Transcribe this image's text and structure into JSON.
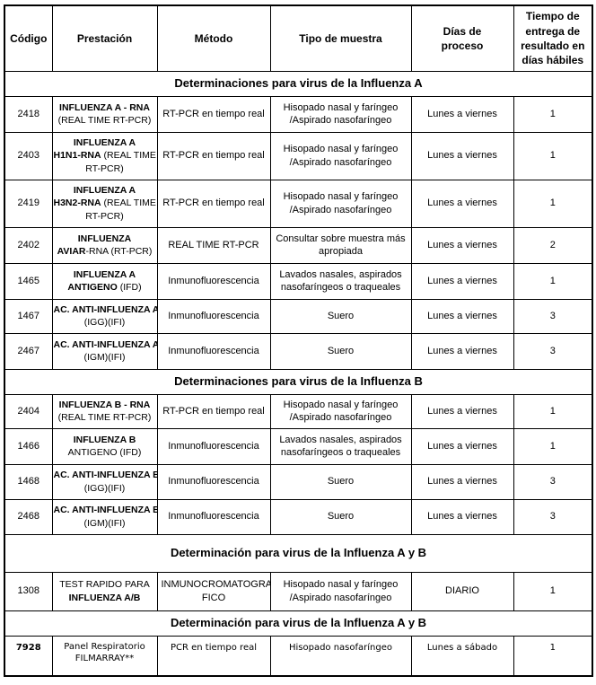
{
  "colors": {
    "text": "#000000",
    "border": "#000000",
    "background": "#ffffff"
  },
  "table": {
    "columns": [
      "Código",
      "Prestación",
      "Método",
      "Tipo de muestra",
      "Días de proceso",
      "Tiempo de entrega de resultado en días hábiles"
    ],
    "rows": [
      {
        "type": "section",
        "title": "Determinaciones para virus de la Influenza A"
      },
      {
        "type": "test",
        "codigo": "2418",
        "prestacion": [
          [
            [
              "INFLUENZA A - RNA",
              true
            ]
          ],
          [
            [
              "(REAL TIME RT-PCR)",
              false
            ]
          ]
        ],
        "metodo": "RT-PCR en tiempo real",
        "muestra": "Hisopado nasal y faríngeo\n/Aspirado nasofaríngeo",
        "dias": "Lunes a viernes",
        "tiempo": "1"
      },
      {
        "type": "test",
        "codigo": "2403",
        "prestacion": [
          [
            [
              "INFLUENZA A",
              true
            ]
          ],
          [
            [
              "H1N1-RNA",
              true
            ],
            [
              " (REAL TIME",
              false
            ]
          ],
          [
            [
              "RT-PCR)",
              false
            ]
          ]
        ],
        "metodo": "RT-PCR en tiempo real",
        "muestra": "Hisopado nasal y faríngeo\n/Aspirado nasofaríngeo",
        "dias": "Lunes a viernes",
        "tiempo": "1"
      },
      {
        "type": "test",
        "codigo": "2419",
        "prestacion": [
          [
            [
              "INFLUENZA A",
              true
            ]
          ],
          [
            [
              "H3N2-RNA",
              true
            ],
            [
              " (REAL TIME",
              false
            ]
          ],
          [
            [
              "RT-PCR)",
              false
            ]
          ]
        ],
        "metodo": "RT-PCR en tiempo real",
        "muestra": "Hisopado nasal y faríngeo\n/Aspirado nasofaríngeo",
        "dias": "Lunes a viernes",
        "tiempo": "1"
      },
      {
        "type": "test",
        "codigo": "2402",
        "prestacion": [
          [
            [
              "INFLUENZA",
              true
            ]
          ],
          [
            [
              "AVIAR",
              true
            ],
            [
              "-RNA (RT-PCR)",
              false
            ]
          ]
        ],
        "metodo": "REAL TIME RT-PCR",
        "muestra": "Consultar sobre muestra más\napropiada",
        "dias": "Lunes a viernes",
        "tiempo": "2"
      },
      {
        "type": "test",
        "codigo": "1465",
        "prestacion": [
          [
            [
              "INFLUENZA A",
              true
            ]
          ],
          [
            [
              "ANTIGENO",
              true
            ],
            [
              " (IFD)",
              false
            ]
          ]
        ],
        "metodo": "Inmunofluorescencia",
        "muestra": "Lavados nasales, aspirados\nnasofaríngeos o traqueales",
        "dias": "Lunes a viernes",
        "tiempo": "1"
      },
      {
        "type": "test",
        "codigo": "1467",
        "prestacion": [
          [
            [
              "AC. ANTI-INFLUENZA A",
              true
            ]
          ],
          [
            [
              "(IGG)(IFI)",
              false
            ]
          ]
        ],
        "metodo": "Inmunofluorescencia",
        "muestra": "Suero",
        "dias": "Lunes a viernes",
        "tiempo": "3"
      },
      {
        "type": "test",
        "codigo": "2467",
        "prestacion": [
          [
            [
              "AC. ANTI-INFLUENZA A",
              true
            ]
          ],
          [
            [
              "(IGM)(IFI)",
              false
            ]
          ]
        ],
        "metodo": "Inmunofluorescencia",
        "muestra": "Suero",
        "dias": "Lunes a viernes",
        "tiempo": "3"
      },
      {
        "type": "section",
        "title": "Determinaciones para virus de la Influenza B"
      },
      {
        "type": "test",
        "codigo": "2404",
        "prestacion": [
          [
            [
              "INFLUENZA B - RNA",
              true
            ]
          ],
          [
            [
              "(REAL TIME RT-PCR)",
              false
            ]
          ]
        ],
        "metodo": "RT-PCR en tiempo real",
        "muestra": "Hisopado nasal y faríngeo\n/Aspirado nasofaríngeo",
        "dias": "Lunes a viernes",
        "tiempo": "1"
      },
      {
        "type": "test",
        "codigo": "1466",
        "prestacion": [
          [
            [
              "INFLUENZA B",
              true
            ]
          ],
          [
            [
              "ANTIGENO (IFD)",
              false
            ]
          ]
        ],
        "metodo": "Inmunofluorescencia",
        "muestra": "Lavados nasales, aspirados\nnasofaríngeos o traqueales",
        "dias": "Lunes a viernes",
        "tiempo": "1"
      },
      {
        "type": "test",
        "codigo": "1468",
        "prestacion": [
          [
            [
              "AC. ANTI-INFLUENZA B",
              true
            ]
          ],
          [
            [
              "(IGG)(IFI)",
              false
            ]
          ]
        ],
        "metodo": "Inmunofluorescencia",
        "muestra": "Suero",
        "dias": "Lunes a viernes",
        "tiempo": "3"
      },
      {
        "type": "test",
        "codigo": "2468",
        "prestacion": [
          [
            [
              "AC. ANTI-INFLUENZA B",
              true
            ]
          ],
          [
            [
              "(IGM)(IFI)",
              false
            ]
          ]
        ],
        "metodo": "Inmunofluorescencia",
        "muestra": "Suero",
        "dias": "Lunes a viernes",
        "tiempo": "3"
      },
      {
        "type": "section",
        "title": "Determinación para virus de la Influenza A y B"
      },
      {
        "type": "test",
        "codigo": "1308",
        "prestacion": [
          [
            [
              "TEST RAPIDO PARA",
              false
            ]
          ],
          [
            [
              "INFLUENZA A/B",
              true
            ]
          ]
        ],
        "metodo": "INMUNOCROMATOGRA\nFICO",
        "muestra": "Hisopado nasal y faríngeo\n/Aspirado nasofaríngeo",
        "dias": "DIARIO",
        "tiempo": "1"
      },
      {
        "type": "section",
        "title": "Determinación para virus de la Influenza A y B"
      },
      {
        "type": "test",
        "codigo": "7928",
        "prestacion": [
          [
            [
              "Panel Respiratorio",
              false
            ]
          ],
          [
            [
              "FILMARRAY**",
              false
            ]
          ]
        ],
        "metodo": "PCR en tiempo real",
        "muestra": "Hisopado nasofaríngeo",
        "dias": "Lunes a sábado",
        "tiempo": "1"
      }
    ]
  }
}
